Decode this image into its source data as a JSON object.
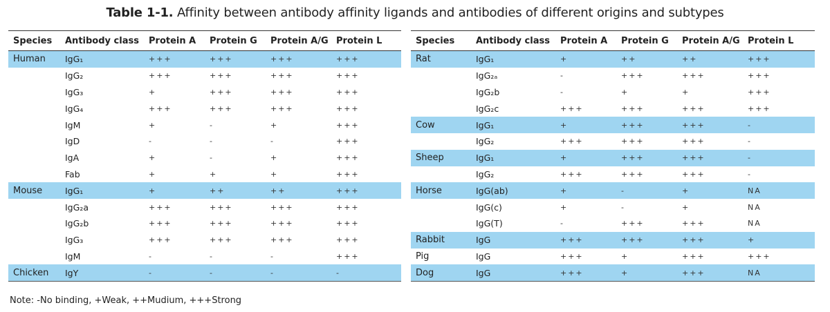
{
  "title": {
    "label": "Table 1-1.",
    "text": "Affinity between antibody affinity ligands and antibodies of different origins and subtypes"
  },
  "headers": {
    "left": [
      "Species",
      "Antibody class",
      "Protein A",
      "Protein G",
      "Protein A/G",
      "Protein L"
    ],
    "right": [
      "Species",
      "Antibody class",
      "Protein A",
      "Protein G",
      "Protein A/G",
      "Protein L"
    ]
  },
  "left_rows": [
    {
      "species": "Human",
      "class": "IgG₁",
      "a": "+++",
      "g": "+++",
      "ag": "+++",
      "l": "+++",
      "hl": true
    },
    {
      "species": "",
      "class": "IgG₂",
      "a": "+++",
      "g": "+++",
      "ag": "+++",
      "l": "+++",
      "hl": false
    },
    {
      "species": "",
      "class": "IgG₃",
      "a": "+",
      "g": "+++",
      "ag": "+++",
      "l": "+++",
      "hl": false
    },
    {
      "species": "",
      "class": "IgG₄",
      "a": "+++",
      "g": "+++",
      "ag": "+++",
      "l": "+++",
      "hl": false
    },
    {
      "species": "",
      "class": "IgM",
      "a": "+",
      "g": "-",
      "ag": "+",
      "l": "+++",
      "hl": false
    },
    {
      "species": "",
      "class": "IgD",
      "a": "-",
      "g": "-",
      "ag": "-",
      "l": "+++",
      "hl": false
    },
    {
      "species": "",
      "class": "IgA",
      "a": "+",
      "g": "-",
      "ag": "+",
      "l": "+++",
      "hl": false
    },
    {
      "species": "",
      "class": "Fab",
      "a": "+",
      "g": "+",
      "ag": "+",
      "l": "+++",
      "hl": false
    },
    {
      "species": "Mouse",
      "class": "IgG₁",
      "a": "+",
      "g": "++",
      "ag": "++",
      "l": "+++",
      "hl": true
    },
    {
      "species": "",
      "class": "IgG₂a",
      "a": "+++",
      "g": "+++",
      "ag": "+++",
      "l": "+++",
      "hl": false
    },
    {
      "species": "",
      "class": "IgG₂b",
      "a": "+++",
      "g": "+++",
      "ag": "+++",
      "l": "+++",
      "hl": false
    },
    {
      "species": "",
      "class": "IgG₃",
      "a": "+++",
      "g": "+++",
      "ag": "+++",
      "l": "+++",
      "hl": false
    },
    {
      "species": "",
      "class": "IgM",
      "a": "-",
      "g": "-",
      "ag": "-",
      "l": "+++",
      "hl": false
    },
    {
      "species": "Chicken",
      "class": "IgY",
      "a": "-",
      "g": "-",
      "ag": "-",
      "l": "-",
      "hl": true
    }
  ],
  "right_rows": [
    {
      "species": "Rat",
      "class": "IgG₁",
      "a": "+",
      "g": "++",
      "ag": "++",
      "l": "+++",
      "hl": true
    },
    {
      "species": "",
      "class": "IgG₂ₐ",
      "a": "-",
      "g": "+++",
      "ag": "+++",
      "l": "+++",
      "hl": false
    },
    {
      "species": "",
      "class": "IgG₂b",
      "a": "-",
      "g": "+",
      "ag": "+",
      "l": "+++",
      "hl": false
    },
    {
      "species": "",
      "class": "IgG₂c",
      "a": "+++",
      "g": "+++",
      "ag": "+++",
      "l": "+++",
      "hl": false
    },
    {
      "species": "Cow",
      "class": "IgG₁",
      "a": "+",
      "g": "+++",
      "ag": "+++",
      "l": "-",
      "hl": true
    },
    {
      "species": "",
      "class": "IgG₂",
      "a": "+++",
      "g": "+++",
      "ag": "+++",
      "l": "-",
      "hl": false
    },
    {
      "species": "Sheep",
      "class": "IgG₁",
      "a": "+",
      "g": "+++",
      "ag": "+++",
      "l": "-",
      "hl": true
    },
    {
      "species": "",
      "class": "IgG₂",
      "a": "+++",
      "g": "+++",
      "ag": "+++",
      "l": "-",
      "hl": false
    },
    {
      "species": "Horse",
      "class": "IgG(ab)",
      "a": "+",
      "g": "-",
      "ag": "+",
      "l": "NA",
      "hl": true
    },
    {
      "species": "",
      "class": "IgG(c)",
      "a": "+",
      "g": "-",
      "ag": "+",
      "l": "NA",
      "hl": false
    },
    {
      "species": "",
      "class": "IgG(T)",
      "a": "-",
      "g": "+++",
      "ag": "+++",
      "l": "NA",
      "hl": false
    },
    {
      "species": "Rabbit",
      "class": "IgG",
      "a": "+++",
      "g": "+++",
      "ag": "+++",
      "l": "+",
      "hl": true
    },
    {
      "species": "Pig",
      "class": "IgG",
      "a": "+++",
      "g": "+",
      "ag": "+++",
      "l": "+++",
      "hl": false
    },
    {
      "species": "Dog",
      "class": "IgG",
      "a": "+++",
      "g": "+",
      "ag": "+++",
      "l": "NA",
      "hl": true
    }
  ],
  "note": "Note: -No binding, +Weak, ++Mudium, +++Strong",
  "colors": {
    "highlight_row": "#9fd5f1",
    "rule": "#333333",
    "text": "#222222"
  }
}
